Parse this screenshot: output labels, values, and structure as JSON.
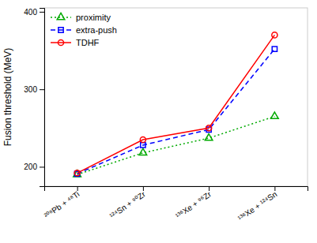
{
  "chart_data": {
    "type": "line",
    "categories": [
      "²⁰⁸Pb + ⁴⁸Ti",
      "¹²⁴Sn + ⁹⁰Zr",
      "¹³⁶Xe + ⁹⁶Zr",
      "¹³⁶Xe + ¹²⁴Sn"
    ],
    "series": [
      {
        "name": "proximity",
        "color": "#00aa00",
        "values": [
          190,
          218,
          237,
          265
        ],
        "marker": "triangle",
        "line_style": "dotted"
      },
      {
        "name": "extra-push",
        "color": "#0000ff",
        "values": [
          191,
          228,
          248,
          352
        ],
        "marker": "square",
        "line_style": "dashed"
      },
      {
        "name": "TDHF",
        "color": "#ff0000",
        "values": [
          192,
          235,
          250,
          370
        ],
        "marker": "circle",
        "line_style": "solid"
      }
    ],
    "ylabel": "Fusion threshold (MeV)",
    "ylim": [
      175,
      405
    ],
    "yticks": [
      200,
      300,
      400
    ],
    "legend": "upper left"
  }
}
